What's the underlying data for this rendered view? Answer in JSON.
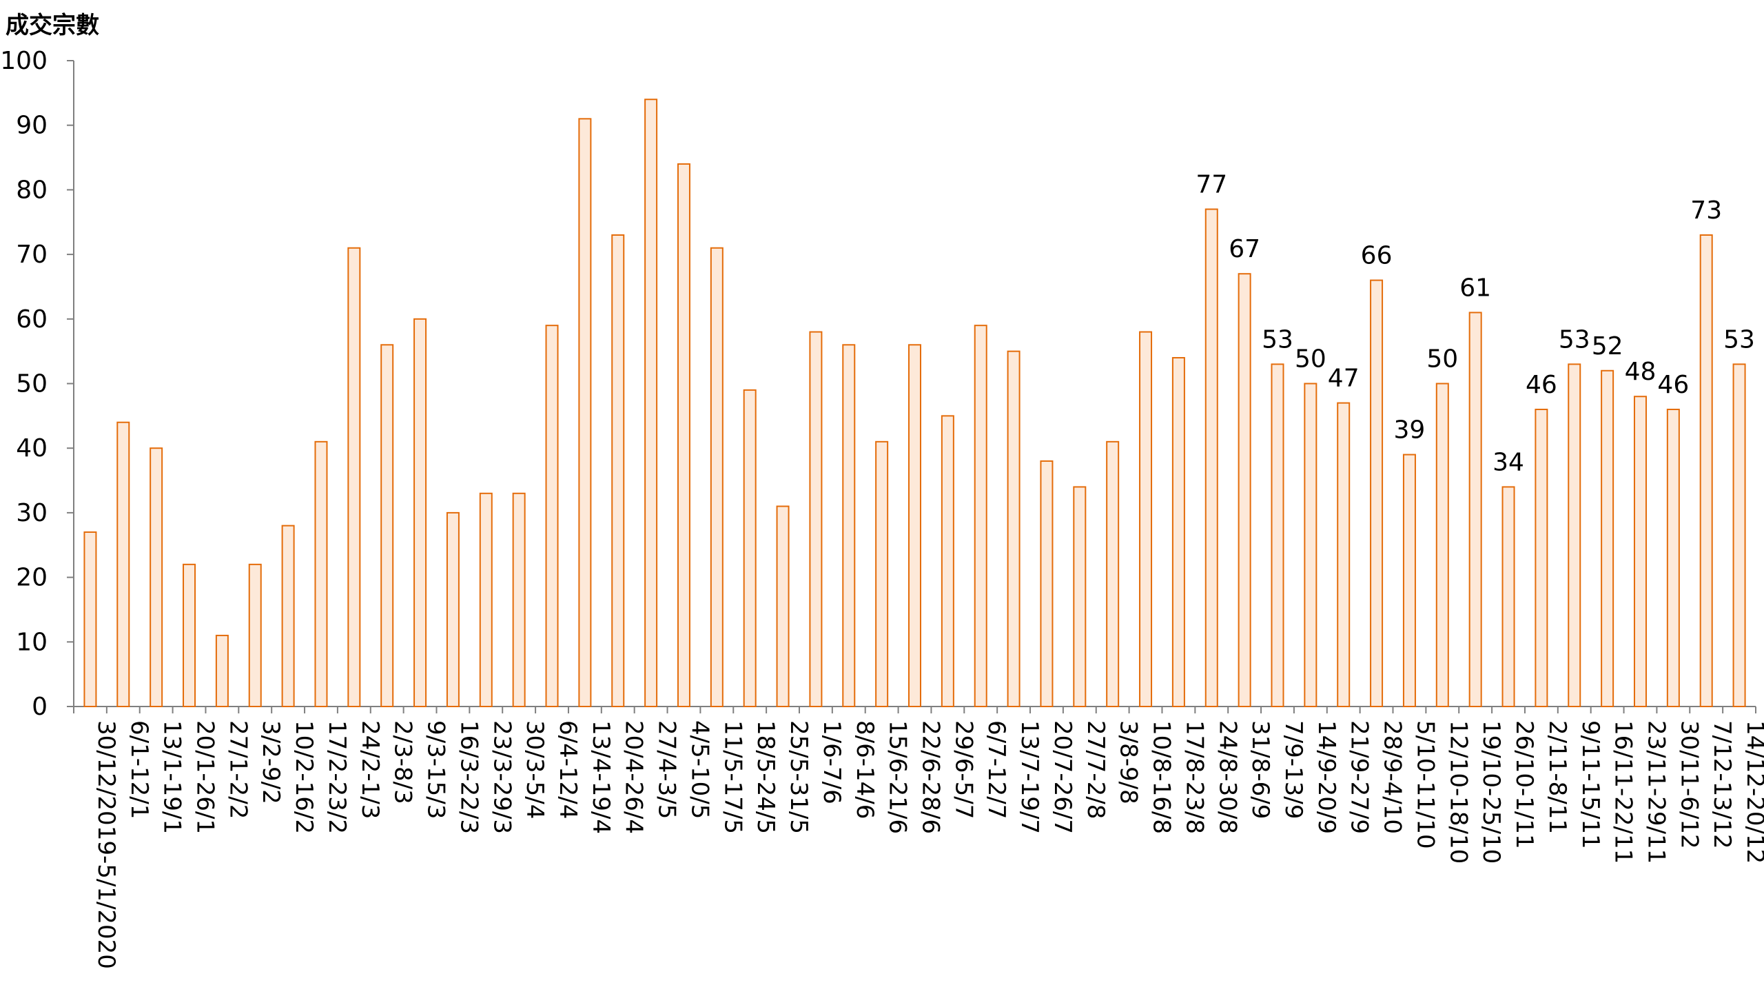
{
  "chart_data": {
    "type": "bar",
    "title": "",
    "xlabel": "",
    "ylabel": "成交宗數",
    "ylim": [
      0,
      100
    ],
    "yticks": [
      0,
      10,
      20,
      30,
      40,
      50,
      60,
      70,
      80,
      90,
      100
    ],
    "grid": false,
    "bar_fill": "#FDE9D9",
    "bar_stroke": "#E46C0A",
    "axis_color": "#7F7F7F",
    "categories": [
      "30/12/2019-5/1/2020",
      "6/1-12/1",
      "13/1-19/1",
      "20/1-26/1",
      "27/1-2/2",
      "3/2-9/2",
      "10/2-16/2",
      "17/2-23/2",
      "24/2-1/3",
      "2/3-8/3",
      "9/3-15/3",
      "16/3-22/3",
      "23/3-29/3",
      "30/3-5/4",
      "6/4-12/4",
      "13/4-19/4",
      "20/4-26/4",
      "27/4-3/5",
      "4/5-10/5",
      "11/5-17/5",
      "18/5-24/5",
      "25/5-31/5",
      "1/6-7/6",
      "8/6-14/6",
      "15/6-21/6",
      "22/6-28/6",
      "29/6-5/7",
      "6/7-12/7",
      "13/7-19/7",
      "20/7-26/7",
      "27/7-2/8",
      "3/8-9/8",
      "10/8-16/8",
      "17/8-23/8",
      "24/8-30/8",
      "31/8-6/9",
      "7/9-13/9",
      "14/9-20/9",
      "21/9-27/9",
      "28/9-4/10",
      "5/10-11/10",
      "12/10-18/10",
      "19/10-25/10",
      "26/10-1/11",
      "2/11-8/11",
      "9/11-15/11",
      "16/11-22/11",
      "23/11-29/11",
      "30/11-6/12",
      "7/12-13/12",
      "14/12-20/12"
    ],
    "values": [
      27,
      44,
      40,
      22,
      11,
      22,
      28,
      41,
      71,
      56,
      60,
      30,
      33,
      33,
      59,
      91,
      73,
      94,
      84,
      71,
      49,
      31,
      58,
      56,
      41,
      56,
      45,
      59,
      55,
      38,
      34,
      41,
      58,
      54,
      77,
      67,
      53,
      50,
      47,
      66,
      39,
      50,
      61,
      34,
      46,
      53,
      52,
      48,
      46,
      73,
      53
    ],
    "data_labels": [
      null,
      null,
      null,
      null,
      null,
      null,
      null,
      null,
      null,
      null,
      null,
      null,
      null,
      null,
      null,
      null,
      null,
      null,
      null,
      null,
      null,
      null,
      null,
      null,
      null,
      null,
      null,
      null,
      null,
      null,
      null,
      null,
      null,
      null,
      "77",
      "67",
      "53",
      "50",
      "47",
      "66",
      "39",
      "50",
      "61",
      "34",
      "46",
      "53",
      "52",
      "48",
      "46",
      "73",
      "53"
    ]
  }
}
